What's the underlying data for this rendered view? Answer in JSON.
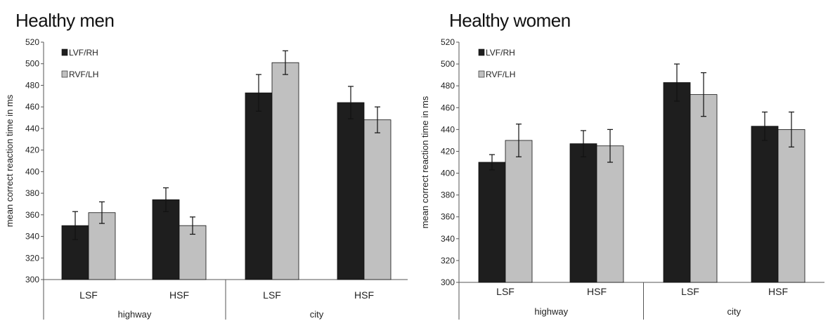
{
  "colors": {
    "lvf": "#1e1e1e",
    "rvf": "#c0c0c0",
    "axis": "#555555"
  },
  "chart_data": [
    {
      "type": "bar",
      "title": "Healthy men",
      "ylabel": "mean correct reaction time in ms",
      "ylim": [
        300,
        520
      ],
      "yticks": [
        300,
        320,
        340,
        360,
        380,
        400,
        420,
        440,
        460,
        480,
        500,
        520
      ],
      "categories": [
        "LSF",
        "HSF",
        "LSF",
        "HSF"
      ],
      "groups": [
        {
          "label": "highway",
          "categories": [
            "LSF",
            "HSF"
          ]
        },
        {
          "label": "city",
          "categories": [
            "LSF",
            "HSF"
          ]
        }
      ],
      "legend": "top-left",
      "grid": false,
      "series": [
        {
          "name": "LVF/RH",
          "values": [
            350,
            374,
            473,
            464
          ],
          "errors": [
            13,
            11,
            17,
            15
          ]
        },
        {
          "name": "RVF/LH",
          "values": [
            362,
            350,
            501,
            448
          ],
          "errors": [
            10,
            8,
            11,
            12
          ]
        }
      ]
    },
    {
      "type": "bar",
      "title": "Healthy women",
      "ylabel": "mean correct reaction time in ms",
      "ylim": [
        300,
        520
      ],
      "yticks": [
        300,
        320,
        340,
        360,
        380,
        400,
        420,
        440,
        460,
        480,
        500,
        520
      ],
      "categories": [
        "LSF",
        "HSF",
        "LSF",
        "HSF"
      ],
      "groups": [
        {
          "label": "highway",
          "categories": [
            "LSF",
            "HSF"
          ]
        },
        {
          "label": "city",
          "categories": [
            "LSF",
            "HSF"
          ]
        }
      ],
      "legend": "top-left",
      "grid": false,
      "series": [
        {
          "name": "LVF/RH",
          "values": [
            410,
            427,
            483,
            443
          ],
          "errors": [
            7,
            12,
            17,
            13
          ]
        },
        {
          "name": "RVF/LH",
          "values": [
            430,
            425,
            472,
            440
          ],
          "errors": [
            15,
            15,
            20,
            16
          ]
        }
      ]
    }
  ]
}
